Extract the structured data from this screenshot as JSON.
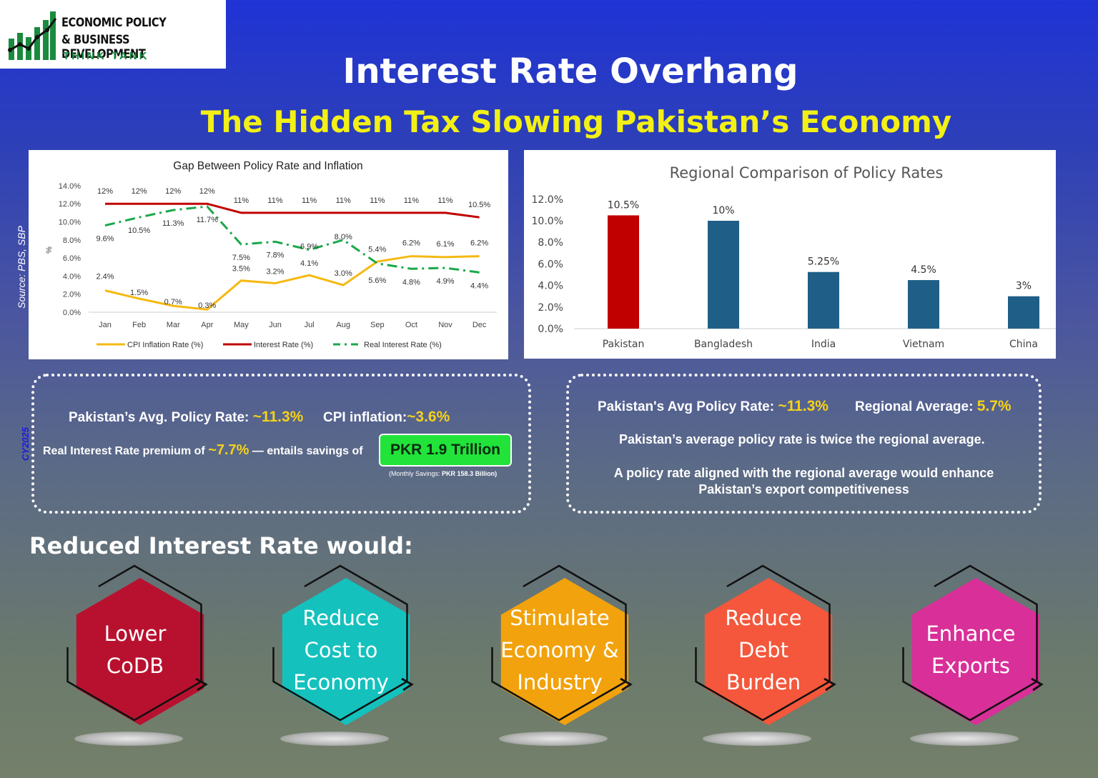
{
  "logo": {
    "line1": "ECONOMIC POLICY",
    "line2": "& BUSINESS DEVELOPMENT",
    "line3": "THINK TANK"
  },
  "header": {
    "title": "Interest Rate Overhang",
    "subtitle": "The Hidden Tax Slowing Pakistan’s Economy"
  },
  "source_note": "Source: PBS, SBP",
  "cy_note": "CY2025",
  "chart_data": [
    {
      "type": "line",
      "title": "Gap Between Policy Rate and Inflation",
      "ylabel": "%",
      "xlabel": "",
      "ylim": [
        0,
        14
      ],
      "yticks": [
        "0.0%",
        "2.0%",
        "4.0%",
        "6.0%",
        "8.0%",
        "10.0%",
        "12.0%",
        "14.0%"
      ],
      "categories": [
        "Jan",
        "Feb",
        "Mar",
        "Apr",
        "May",
        "Jun",
        "Jul",
        "Aug",
        "Sep",
        "Oct",
        "Nov",
        "Dec"
      ],
      "legend_position": "bottom",
      "series": [
        {
          "name": "CPI Inflation Rate (%)",
          "color": "#f5b912",
          "style": "solid",
          "values": [
            2.4,
            1.5,
            0.7,
            0.3,
            3.5,
            3.2,
            4.1,
            3.0,
            5.6,
            6.2,
            6.1,
            6.2
          ],
          "labels": [
            "2.4%",
            "1.5%",
            "0.7%",
            "0.3%",
            "3.5%",
            "3.2%",
            "4.1%",
            "3.0%",
            "5.6%",
            "6.2%",
            "6.1%",
            "6.2%"
          ]
        },
        {
          "name": "Interest Rate (%)",
          "color": "#c00000",
          "style": "solid",
          "values": [
            12,
            12,
            12,
            12,
            11,
            11,
            11,
            11,
            11,
            11,
            11,
            10.5
          ],
          "labels": [
            "12%",
            "12%",
            "12%",
            "12%",
            "11%",
            "11%",
            "11%",
            "11%",
            "11%",
            "11%",
            "11%",
            "10.5%"
          ]
        },
        {
          "name": "Real Interest Rate (%)",
          "color": "#1aa84a",
          "style": "dashdot",
          "values": [
            9.6,
            10.5,
            11.3,
            11.7,
            7.5,
            7.8,
            6.9,
            8.0,
            5.4,
            4.8,
            4.9,
            4.4
          ],
          "labels": [
            "9.6%",
            "10.5%",
            "11.3%",
            "11.7%",
            "7.5%",
            "7.8%",
            "6.9%",
            "8.0%",
            "5.4%",
            "4.8%",
            "4.9%",
            "4.4%"
          ]
        }
      ]
    },
    {
      "type": "bar",
      "title": "Regional Comparison of Policy Rates",
      "xlabel": "",
      "ylabel": "",
      "ylim": [
        0,
        12
      ],
      "yticks": [
        "0.0%",
        "2.0%",
        "4.0%",
        "6.0%",
        "8.0%",
        "10.0%",
        "12.0%"
      ],
      "categories": [
        "Pakistan",
        "Bangladesh",
        "India",
        "Vietnam",
        "China"
      ],
      "values": [
        10.5,
        10,
        5.25,
        4.5,
        3
      ],
      "labels": [
        "10.5%",
        "10%",
        "5.25%",
        "4.5%",
        "3%"
      ],
      "colors": [
        "#c00000",
        "#1f5f87",
        "#1f5f87",
        "#1f5f87",
        "#1f5f87"
      ]
    }
  ],
  "left_box": {
    "policy_label": "Pakistan’s Avg. Policy Rate:",
    "policy_value": "~11.3%",
    "cpi_label": "CPI inflation:",
    "cpi_value": "~3.6%",
    "premium_label": "Real Interest Rate premium of",
    "premium_value": "~7.7%",
    "premium_tail": "— entails savings of",
    "savings": "PKR 1.9 Trillion",
    "monthly_label": "(Monthly Savings:",
    "monthly_value": "PKR 158.3 Billion)"
  },
  "right_box": {
    "policy_label": "Pakistan's Avg Policy Rate:",
    "policy_value": "~11.3%",
    "regional_label": "Regional Average:",
    "regional_value": "5.7%",
    "line2": "Pakistan’s average policy rate is twice the regional average.",
    "line3a": "A policy rate aligned with the regional average would enhance",
    "line3b": "Pakistan’s export competitiveness"
  },
  "reduced_heading": "Reduced Interest Rate would:",
  "benefits": [
    {
      "label": "Lower\nCoDB",
      "color": "#b8112f"
    },
    {
      "label": "Reduce\nCost to\nEconomy",
      "color": "#14c1bd"
    },
    {
      "label": "Stimulate\nEconomy &\nIndustry",
      "color": "#f2a20c"
    },
    {
      "label": "Reduce\nDebt\nBurden",
      "color": "#f4573b"
    },
    {
      "label": "Enhance\nExports",
      "color": "#d92f98"
    }
  ]
}
